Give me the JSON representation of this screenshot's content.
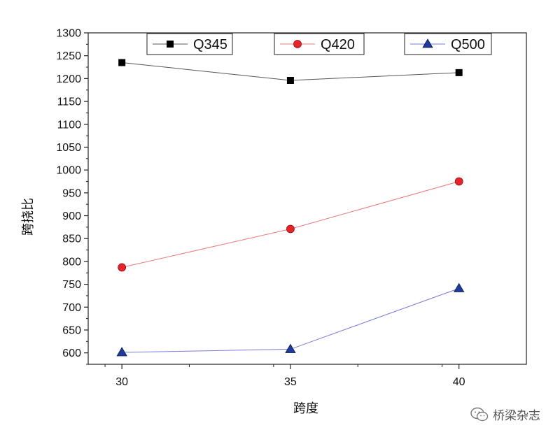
{
  "chart_data": {
    "type": "line",
    "title": "",
    "xlabel": "跨度",
    "ylabel": "跨挠比",
    "x": [
      30,
      35,
      40
    ],
    "xticks": [
      30,
      35,
      40
    ],
    "xlim": [
      29,
      42
    ],
    "ylim": [
      575,
      1300
    ],
    "yticks": [
      600,
      650,
      700,
      750,
      800,
      850,
      900,
      950,
      1000,
      1050,
      1100,
      1150,
      1200,
      1250,
      1300
    ],
    "legend_position": "top",
    "series": [
      {
        "name": "Q345",
        "values": [
          1235,
          1196,
          1213
        ],
        "color": "#000000",
        "line_color": "#555555",
        "marker": "square"
      },
      {
        "name": "Q420",
        "values": [
          787,
          871,
          975
        ],
        "color": "#e8232a",
        "line_color": "#e87a7a",
        "marker": "circle"
      },
      {
        "name": "Q500",
        "values": [
          601,
          608,
          741
        ],
        "color": "#1e3a9a",
        "line_color": "#7a7ad8",
        "marker": "triangle"
      }
    ]
  },
  "watermark": {
    "text": "桥梁杂志",
    "icon": "wechat-icon"
  }
}
